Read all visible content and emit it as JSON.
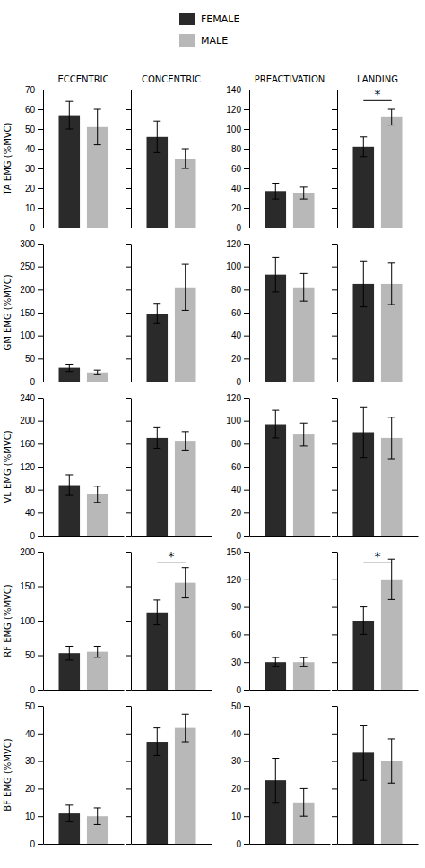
{
  "chart_data": [
    {
      "type": "bar",
      "title": "ECCENTRIC",
      "ylabel": "TA EMG (%MVC)",
      "legend": "top",
      "categories": [
        null
      ],
      "series": [
        {
          "name": "FEMALE",
          "color": "#2a2a2a",
          "values": [
            57
          ],
          "error": [
            7
          ]
        },
        {
          "name": "MALE",
          "color": "#b8b8b8",
          "values": [
            51
          ],
          "error": [
            9
          ]
        }
      ],
      "ylim": [
        0,
        70
      ],
      "yticks": [
        0,
        10,
        20,
        30,
        40,
        50,
        60,
        70
      ],
      "tick_labels": "y"
    },
    {
      "type": "bar",
      "title": "CONCENTRIC",
      "categories": [
        null
      ],
      "series": [
        {
          "name": "FEMALE",
          "color": "#2a2a2a",
          "values": [
            46
          ],
          "error": [
            8
          ]
        },
        {
          "name": "MALE",
          "color": "#b8b8b8",
          "values": [
            35
          ],
          "error": [
            5
          ]
        }
      ],
      "ylim": [
        0,
        70
      ],
      "yticks": [
        0,
        10,
        20,
        30,
        40,
        50,
        60,
        70
      ],
      "tick_labels": false
    },
    {
      "type": "bar",
      "title": "PREACTIVATION",
      "categories": [
        null
      ],
      "series": [
        {
          "name": "FEMALE",
          "color": "#2a2a2a",
          "values": [
            37
          ],
          "error": [
            8
          ]
        },
        {
          "name": "MALE",
          "color": "#b8b8b8",
          "values": [
            35
          ],
          "error": [
            6
          ]
        }
      ],
      "ylim": [
        0,
        140
      ],
      "yticks": [
        0,
        20,
        40,
        60,
        80,
        100,
        120,
        140
      ],
      "tick_labels": "y"
    },
    {
      "type": "bar",
      "title": "LANDING",
      "categories": [
        null
      ],
      "series": [
        {
          "name": "FEMALE",
          "color": "#2a2a2a",
          "values": [
            82
          ],
          "error": [
            10
          ]
        },
        {
          "name": "MALE",
          "color": "#b8b8b8",
          "values": [
            112
          ],
          "error": [
            8
          ]
        }
      ],
      "ylim": [
        0,
        140
      ],
      "yticks": [
        0,
        20,
        40,
        60,
        80,
        100,
        120,
        140
      ],
      "tick_labels": false,
      "annotations": [
        "*"
      ]
    },
    {
      "type": "bar",
      "ylabel": "GM EMG (%MVC)",
      "categories": [
        null
      ],
      "series": [
        {
          "name": "FEMALE",
          "color": "#2a2a2a",
          "values": [
            30
          ],
          "error": [
            8
          ]
        },
        {
          "name": "MALE",
          "color": "#b8b8b8",
          "values": [
            20
          ],
          "error": [
            5
          ]
        }
      ],
      "ylim": [
        0,
        300
      ],
      "yticks": [
        0,
        50,
        100,
        150,
        200,
        250,
        300
      ],
      "tick_labels": "y"
    },
    {
      "type": "bar",
      "categories": [
        null
      ],
      "series": [
        {
          "name": "FEMALE",
          "color": "#2a2a2a",
          "values": [
            148
          ],
          "error": [
            22
          ]
        },
        {
          "name": "MALE",
          "color": "#b8b8b8",
          "values": [
            205
          ],
          "error": [
            50
          ]
        }
      ],
      "ylim": [
        0,
        300
      ],
      "yticks": [
        0,
        50,
        100,
        150,
        200,
        250,
        300
      ],
      "tick_labels": false
    },
    {
      "type": "bar",
      "categories": [
        null
      ],
      "series": [
        {
          "name": "FEMALE",
          "color": "#2a2a2a",
          "values": [
            93
          ],
          "error": [
            15
          ]
        },
        {
          "name": "MALE",
          "color": "#b8b8b8",
          "values": [
            82
          ],
          "error": [
            12
          ]
        }
      ],
      "ylim": [
        0,
        120
      ],
      "yticks": [
        0,
        20,
        40,
        60,
        80,
        100,
        120
      ],
      "tick_labels": "y"
    },
    {
      "type": "bar",
      "categories": [
        null
      ],
      "series": [
        {
          "name": "FEMALE",
          "color": "#2a2a2a",
          "values": [
            85
          ],
          "error": [
            20
          ]
        },
        {
          "name": "MALE",
          "color": "#b8b8b8",
          "values": [
            85
          ],
          "error": [
            18
          ]
        }
      ],
      "ylim": [
        0,
        120
      ],
      "yticks": [
        0,
        20,
        40,
        60,
        80,
        100,
        120
      ],
      "tick_labels": false
    },
    {
      "type": "bar",
      "ylabel": "VL EMG (%MVC)",
      "categories": [
        null
      ],
      "series": [
        {
          "name": "FEMALE",
          "color": "#2a2a2a",
          "values": [
            88
          ],
          "error": [
            18
          ]
        },
        {
          "name": "MALE",
          "color": "#b8b8b8",
          "values": [
            72
          ],
          "error": [
            14
          ]
        }
      ],
      "ylim": [
        0,
        240
      ],
      "yticks": [
        0,
        40,
        80,
        120,
        160,
        200,
        240
      ],
      "tick_labels": "y"
    },
    {
      "type": "bar",
      "categories": [
        null
      ],
      "series": [
        {
          "name": "FEMALE",
          "color": "#2a2a2a",
          "values": [
            170
          ],
          "error": [
            18
          ]
        },
        {
          "name": "MALE",
          "color": "#b8b8b8",
          "values": [
            165
          ],
          "error": [
            16
          ]
        }
      ],
      "ylim": [
        0,
        240
      ],
      "yticks": [
        0,
        40,
        80,
        120,
        160,
        200,
        240
      ],
      "tick_labels": false
    },
    {
      "type": "bar",
      "categories": [
        null
      ],
      "series": [
        {
          "name": "FEMALE",
          "color": "#2a2a2a",
          "values": [
            97
          ],
          "error": [
            12
          ]
        },
        {
          "name": "MALE",
          "color": "#b8b8b8",
          "values": [
            88
          ],
          "error": [
            10
          ]
        }
      ],
      "ylim": [
        0,
        120
      ],
      "yticks": [
        0,
        20,
        40,
        60,
        80,
        100,
        120
      ],
      "tick_labels": "y"
    },
    {
      "type": "bar",
      "categories": [
        null
      ],
      "series": [
        {
          "name": "FEMALE",
          "color": "#2a2a2a",
          "values": [
            90
          ],
          "error": [
            22
          ]
        },
        {
          "name": "MALE",
          "color": "#b8b8b8",
          "values": [
            85
          ],
          "error": [
            18
          ]
        }
      ],
      "ylim": [
        0,
        120
      ],
      "yticks": [
        0,
        20,
        40,
        60,
        80,
        100,
        120
      ],
      "tick_labels": false
    },
    {
      "type": "bar",
      "ylabel": "RF EMG (%MVC)",
      "categories": [
        null
      ],
      "series": [
        {
          "name": "FEMALE",
          "color": "#2a2a2a",
          "values": [
            53
          ],
          "error": [
            10
          ]
        },
        {
          "name": "MALE",
          "color": "#b8b8b8",
          "values": [
            55
          ],
          "error": [
            8
          ]
        }
      ],
      "ylim": [
        0,
        200
      ],
      "yticks": [
        0,
        50,
        100,
        150,
        200
      ],
      "tick_labels": "y"
    },
    {
      "type": "bar",
      "categories": [
        null
      ],
      "series": [
        {
          "name": "FEMALE",
          "color": "#2a2a2a",
          "values": [
            112
          ],
          "error": [
            18
          ]
        },
        {
          "name": "MALE",
          "color": "#b8b8b8",
          "values": [
            155
          ],
          "error": [
            22
          ]
        }
      ],
      "ylim": [
        0,
        200
      ],
      "yticks": [
        0,
        50,
        100,
        150,
        200
      ],
      "tick_labels": false,
      "annotations": [
        "*"
      ]
    },
    {
      "type": "bar",
      "categories": [
        null
      ],
      "series": [
        {
          "name": "FEMALE",
          "color": "#2a2a2a",
          "values": [
            30
          ],
          "error": [
            5
          ]
        },
        {
          "name": "MALE",
          "color": "#b8b8b8",
          "values": [
            30
          ],
          "error": [
            5
          ]
        }
      ],
      "ylim": [
        0,
        150
      ],
      "yticks": [
        0,
        30,
        60,
        90,
        120,
        150
      ],
      "tick_labels": "y"
    },
    {
      "type": "bar",
      "categories": [
        null
      ],
      "series": [
        {
          "name": "FEMALE",
          "color": "#2a2a2a",
          "values": [
            75
          ],
          "error": [
            15
          ]
        },
        {
          "name": "MALE",
          "color": "#b8b8b8",
          "values": [
            120
          ],
          "error": [
            22
          ]
        }
      ],
      "ylim": [
        0,
        150
      ],
      "yticks": [
        0,
        30,
        60,
        90,
        120,
        150
      ],
      "tick_labels": false,
      "annotations": [
        "*"
      ]
    },
    {
      "type": "bar",
      "ylabel": "BF EMG (%MVC)",
      "categories": [
        null
      ],
      "series": [
        {
          "name": "FEMALE",
          "color": "#2a2a2a",
          "values": [
            11
          ],
          "error": [
            3
          ]
        },
        {
          "name": "MALE",
          "color": "#b8b8b8",
          "values": [
            10
          ],
          "error": [
            3
          ]
        }
      ],
      "ylim": [
        0,
        50
      ],
      "yticks": [
        0,
        10,
        20,
        30,
        40,
        50
      ],
      "tick_labels": "y"
    },
    {
      "type": "bar",
      "categories": [
        null
      ],
      "series": [
        {
          "name": "FEMALE",
          "color": "#2a2a2a",
          "values": [
            37
          ],
          "error": [
            5
          ]
        },
        {
          "name": "MALE",
          "color": "#b8b8b8",
          "values": [
            42
          ],
          "error": [
            5
          ]
        }
      ],
      "ylim": [
        0,
        50
      ],
      "yticks": [
        0,
        10,
        20,
        30,
        40,
        50
      ],
      "tick_labels": false
    },
    {
      "type": "bar",
      "categories": [
        null
      ],
      "series": [
        {
          "name": "FEMALE",
          "color": "#2a2a2a",
          "values": [
            23
          ],
          "error": [
            8
          ]
        },
        {
          "name": "MALE",
          "color": "#b8b8b8",
          "values": [
            15
          ],
          "error": [
            5
          ]
        }
      ],
      "ylim": [
        0,
        50
      ],
      "yticks": [
        0,
        10,
        20,
        30,
        40,
        50
      ],
      "tick_labels": "y"
    },
    {
      "type": "bar",
      "categories": [
        null
      ],
      "series": [
        {
          "name": "FEMALE",
          "color": "#2a2a2a",
          "values": [
            33
          ],
          "error": [
            10
          ]
        },
        {
          "name": "MALE",
          "color": "#b8b8b8",
          "values": [
            30
          ],
          "error": [
            8
          ]
        }
      ],
      "ylim": [
        0,
        50
      ],
      "yticks": [
        0,
        10,
        20,
        30,
        40,
        50
      ],
      "tick_labels": false
    }
  ]
}
